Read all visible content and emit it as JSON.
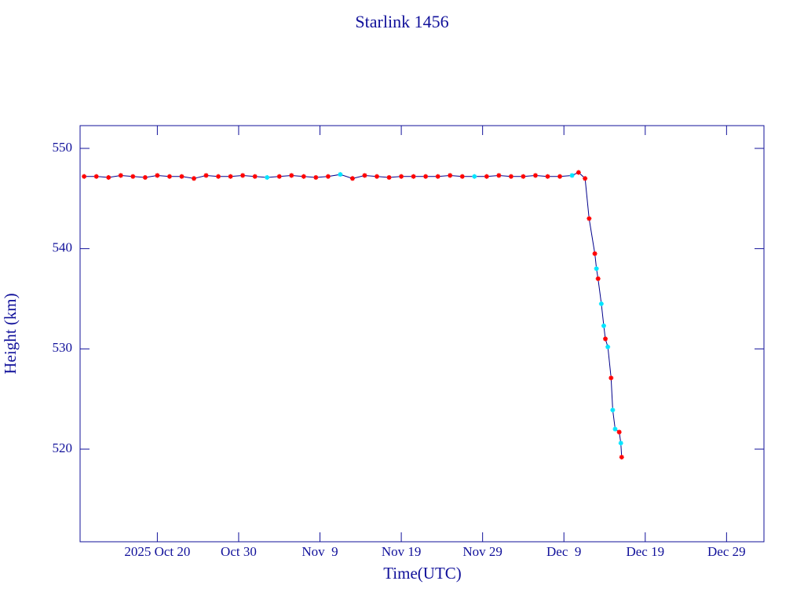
{
  "chart_data": {
    "type": "line",
    "title": "Starlink 1456",
    "x_label": "Time(UTC)",
    "y_label": "Height (km)",
    "x": [
      284,
      285.5,
      287,
      288.5,
      290,
      291.5,
      293,
      294.5,
      296,
      297.5,
      299,
      300.5,
      302,
      303.5,
      305,
      306.5,
      308,
      309.5,
      311,
      312.5,
      314,
      315.5,
      317,
      318.5,
      320,
      321.5,
      323,
      324.5,
      326,
      327.5,
      329,
      330.5,
      332,
      333.5,
      335,
      336.5,
      338,
      339.5,
      341,
      342.5,
      344,
      344.8,
      345.6,
      346.1,
      346.8,
      347,
      347.2,
      347.6,
      347.9,
      348.1,
      348.4,
      348.8,
      349,
      349.3,
      349.8,
      350,
      350.1
    ],
    "values": [
      547.2,
      547.2,
      547.1,
      547.3,
      547.2,
      547.1,
      547.3,
      547.2,
      547.2,
      547.0,
      547.3,
      547.2,
      547.2,
      547.3,
      547.2,
      547.1,
      547.2,
      547.3,
      547.2,
      547.1,
      547.2,
      547.4,
      547.0,
      547.3,
      547.2,
      547.1,
      547.2,
      547.2,
      547.2,
      547.2,
      547.3,
      547.2,
      547.2,
      547.2,
      547.3,
      547.2,
      547.2,
      547.3,
      547.2,
      547.2,
      547.3,
      547.6,
      547.0,
      543.0,
      539.5,
      538.0,
      537.0,
      534.5,
      532.3,
      531.0,
      530.2,
      527.1,
      523.9,
      522.0,
      521.7,
      520.6,
      519.2
    ],
    "line_color": "#00008b",
    "marker_colors": [
      "#ff0000",
      "#ff0000",
      "#ff0000",
      "#ff0000",
      "#ff0000",
      "#ff0000",
      "#ff0000",
      "#ff0000",
      "#ff0000",
      "#ff0000",
      "#ff0000",
      "#ff0000",
      "#ff0000",
      "#ff0000",
      "#ff0000",
      "#00e5ff",
      "#ff0000",
      "#ff0000",
      "#ff0000",
      "#ff0000",
      "#ff0000",
      "#00e5ff",
      "#ff0000",
      "#ff0000",
      "#ff0000",
      "#ff0000",
      "#ff0000",
      "#ff0000",
      "#ff0000",
      "#ff0000",
      "#ff0000",
      "#ff0000",
      "#00e5ff",
      "#ff0000",
      "#ff0000",
      "#ff0000",
      "#ff0000",
      "#ff0000",
      "#ff0000",
      "#ff0000",
      "#00e5ff",
      "#ff0000",
      "#ff0000",
      "#ff0000",
      "#ff0000",
      "#00e5ff",
      "#ff0000",
      "#00e5ff",
      "#00e5ff",
      "#ff0000",
      "#00e5ff",
      "#ff0000",
      "#00e5ff",
      "#00e5ff",
      "#ff0000",
      "#00e5ff",
      "#ff0000"
    ],
    "xlim": [
      283.5,
      367.6
    ],
    "xticks": [
      {
        "value": 293,
        "label": "2025 Oct 20"
      },
      {
        "value": 303,
        "label": "Oct 30"
      },
      {
        "value": 313,
        "label": "Nov  9"
      },
      {
        "value": 323,
        "label": "Nov 19"
      },
      {
        "value": 333,
        "label": "Nov 29"
      },
      {
        "value": 343,
        "label": "Dec  9"
      },
      {
        "value": 353,
        "label": "Dec 19"
      },
      {
        "value": 363,
        "label": "Dec 29"
      }
    ],
    "ylim": [
      510.76,
      552.27
    ],
    "yticks": [
      520,
      530,
      540,
      550
    ]
  }
}
